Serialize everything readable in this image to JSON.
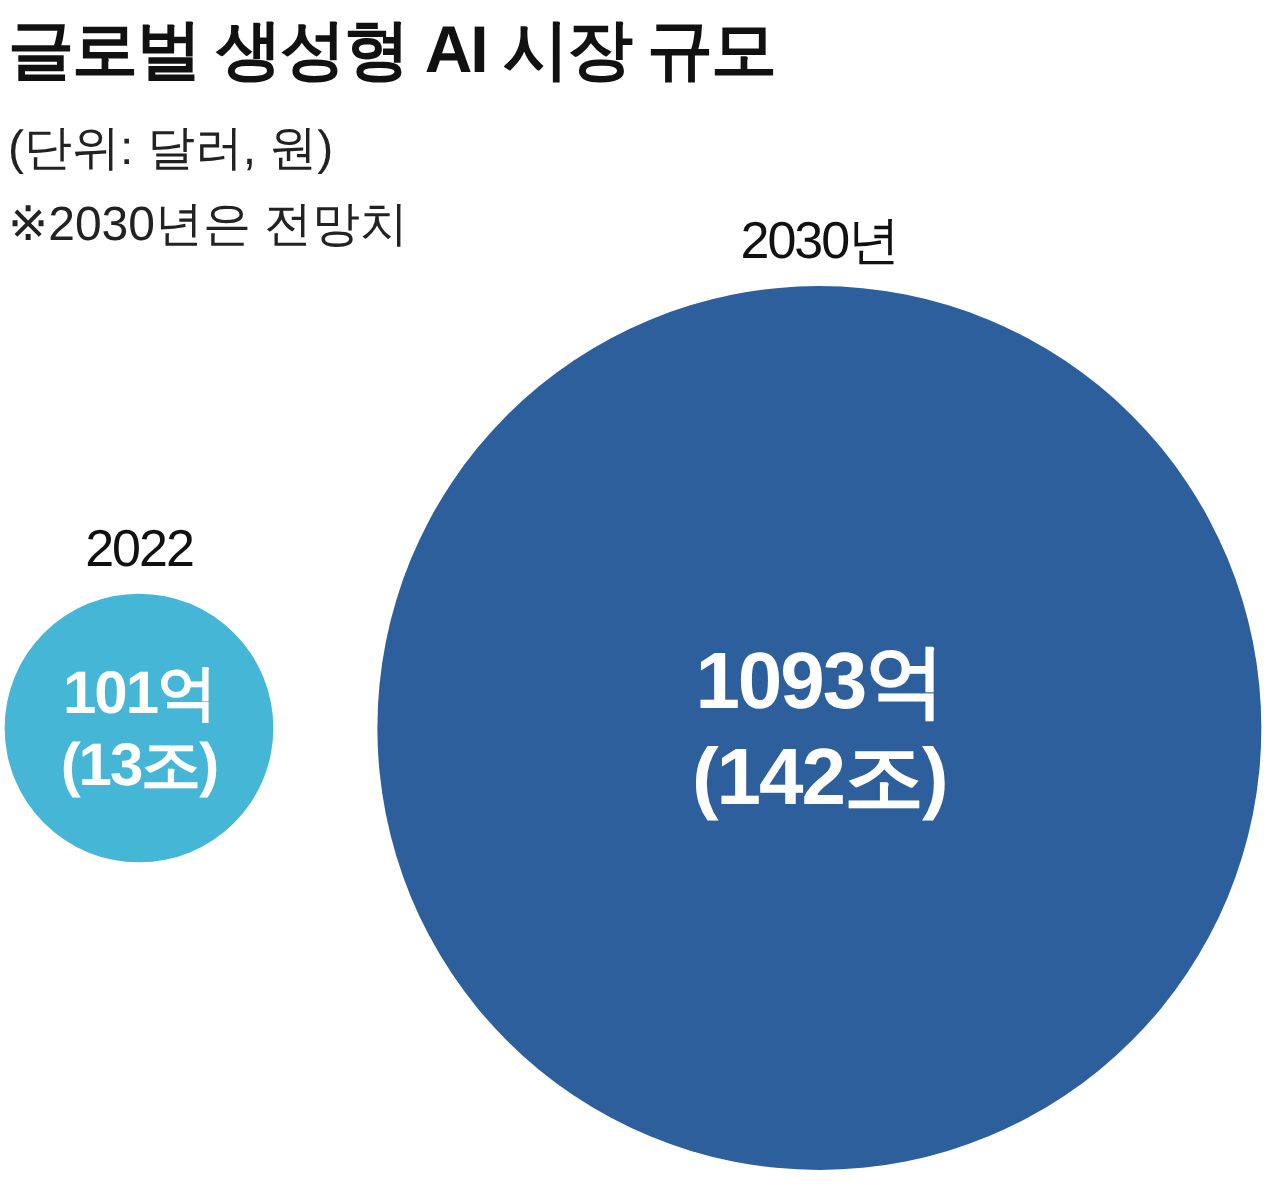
{
  "chart_data": {
    "type": "other",
    "title": "글로벌 생성형 AI 시장 규모",
    "annotations": [
      "(단위: 달러, 원)",
      "※2030년은 전망치"
    ],
    "categories": [
      "2022",
      "2030년"
    ],
    "values": [
      101,
      1093
    ],
    "value_labels": [
      "101억\n(13조)",
      "1093억\n(142조)"
    ],
    "colors": [
      "#45b6d5",
      "#2c5f9b"
    ]
  }
}
